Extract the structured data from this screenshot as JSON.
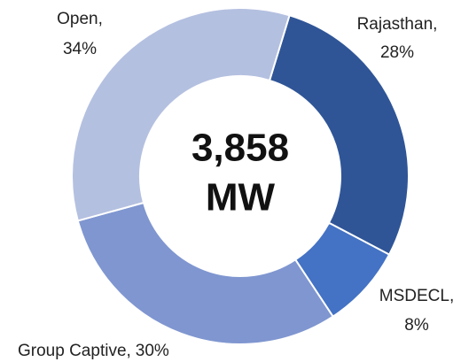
{
  "chart_data": {
    "type": "donut",
    "categories": [
      "Rajasthan,",
      "MSDECL,",
      "Group Captive,",
      "Open,"
    ],
    "values": [
      28,
      8,
      30,
      34
    ],
    "value_labels": [
      "28%",
      "8%",
      "30%",
      "34%"
    ],
    "colors": [
      "#2f5597",
      "#4472c4",
      "#7f96d0",
      "#b4c0e0"
    ],
    "center_text": [
      "3,858",
      "MW"
    ]
  }
}
